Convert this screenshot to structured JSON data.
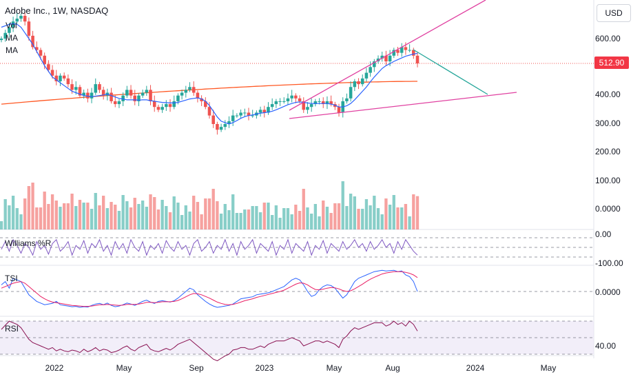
{
  "header": {
    "symbol_title": "Adobe Inc., 1W, NASDAQ",
    "indicators": [
      "Vol",
      "MA",
      "MA"
    ]
  },
  "currency": "USD",
  "last_price_label": "512.90",
  "colors": {
    "up": "#26a69a",
    "down": "#ef5350",
    "ma_fast": "#2962ff",
    "ma_slow": "#ff5722",
    "trend_lines": "#e040a0",
    "projection": "#26a69a",
    "williams": "#7e57c2",
    "tsi": "#2962ff",
    "tsi_signal": "#e91e63",
    "rsi": "#880e4f",
    "rsi_band": "#ede7f6"
  },
  "x_axis": {
    "ticks": [
      "2022",
      "May",
      "Sep",
      "2023",
      "May",
      "Aug",
      "2024",
      "May"
    ]
  },
  "panes": {
    "williams": {
      "label": "Williams %R",
      "ticks": [
        "0.00",
        "-100.00"
      ]
    },
    "tsi": {
      "label": "TSI",
      "ticks": [
        "0.0000"
      ]
    },
    "rsi": {
      "label": "RSI",
      "ticks": [
        "40.00"
      ]
    }
  },
  "chart_data": {
    "type": "candlestick",
    "title": "Adobe Inc., 1W, NASDAQ",
    "y_ticks": [
      "600.00",
      "400.00",
      "300.00",
      "200.00",
      "100.00",
      "0.0000"
    ],
    "ylim": [
      0,
      700
    ],
    "last_price": 512.9,
    "grid": false,
    "close": [
      600,
      620,
      640,
      660,
      670,
      680,
      660,
      610,
      570,
      560,
      540,
      510,
      490,
      470,
      450,
      470,
      460,
      440,
      420,
      430,
      400,
      410,
      390,
      410,
      440,
      420,
      400,
      410,
      380,
      370,
      380,
      400,
      420,
      400,
      380,
      400,
      410,
      420,
      380,
      360,
      350,
      360,
      370,
      360,
      380,
      400,
      410,
      420,
      430,
      410,
      390,
      380,
      360,
      330,
      300,
      280,
      290,
      300,
      310,
      330,
      330,
      340,
      340,
      330,
      330,
      340,
      350,
      340,
      360,
      370,
      380,
      380,
      380,
      390,
      400,
      390,
      380,
      350,
      360,
      370,
      380,
      380,
      370,
      380,
      370,
      360,
      340,
      380,
      390,
      430,
      450,
      440,
      460,
      480,
      500,
      520,
      530,
      540,
      520,
      540,
      560,
      550,
      570,
      560,
      560,
      540,
      512.9
    ],
    "ma_fast": [
      640,
      645,
      650,
      652,
      650,
      640,
      620,
      600,
      580,
      555,
      530,
      505,
      485,
      465,
      455,
      445,
      435,
      425,
      415,
      410,
      405,
      400,
      398,
      396,
      398,
      400,
      402,
      405,
      400,
      395,
      390,
      388,
      385,
      385,
      385,
      384,
      385,
      385,
      382,
      380,
      378,
      376,
      375,
      374,
      374,
      376,
      380,
      384,
      388,
      390,
      392,
      388,
      380,
      365,
      345,
      325,
      310,
      305,
      300,
      305,
      312,
      320,
      326,
      330,
      332,
      335,
      338,
      340,
      342,
      345,
      350,
      356,
      362,
      368,
      372,
      376,
      378,
      376,
      374,
      372,
      372,
      372,
      372,
      372,
      370,
      366,
      360,
      360,
      364,
      372,
      385,
      400,
      415,
      430,
      448,
      465,
      480,
      495,
      505,
      512,
      520,
      526,
      532,
      538,
      542,
      546,
      548
    ],
    "ma_slow_start": 370,
    "ma_slow_end": 450,
    "williams": [
      -60,
      -20,
      -70,
      -10,
      -40,
      -80,
      -30,
      -50,
      -90,
      -20,
      -60,
      -40,
      -85,
      -30,
      -10,
      -70,
      -50,
      -20,
      -90,
      -40,
      -60,
      -15,
      -80,
      -30,
      -50,
      -10,
      -70,
      -40,
      -90,
      -20,
      -60,
      -30,
      -80,
      -10,
      -50,
      -70,
      -20,
      -90,
      -40,
      -60,
      -30,
      -80,
      -15,
      -50,
      -70,
      -20,
      -60,
      -40,
      -90,
      -30,
      -10,
      -70,
      -50,
      -20,
      -80,
      -40,
      -60,
      -10,
      -70,
      -30,
      -90,
      -20,
      -60,
      -40,
      -10,
      -80,
      -30,
      -50,
      -70,
      -20,
      -90,
      -40,
      -60,
      -10,
      -80,
      -30,
      -50,
      -70,
      -20,
      -90,
      -40,
      -60,
      -15,
      -80,
      -30,
      -50,
      -70,
      -20,
      -60,
      -40,
      -10,
      -50,
      -30,
      -70,
      -20,
      -60,
      -40,
      -10,
      -50,
      -30,
      -80,
      -20,
      -60,
      -10,
      -40,
      -70,
      -90
    ],
    "tsi": [
      0.2,
      0.3,
      0.1,
      0.4,
      0.35,
      0.3,
      0.1,
      -0.1,
      -0.2,
      -0.3,
      -0.35,
      -0.4,
      -0.38,
      -0.36,
      -0.3,
      -0.4,
      -0.42,
      -0.44,
      -0.46,
      -0.45,
      -0.48,
      -0.46,
      -0.47,
      -0.42,
      -0.38,
      -0.36,
      -0.4,
      -0.35,
      -0.42,
      -0.46,
      -0.44,
      -0.4,
      -0.35,
      -0.38,
      -0.42,
      -0.36,
      -0.3,
      -0.26,
      -0.32,
      -0.36,
      -0.3,
      -0.28,
      -0.3,
      -0.32,
      -0.28,
      -0.2,
      -0.1,
      0.0,
      0.1,
      0.05,
      -0.1,
      -0.2,
      -0.3,
      -0.38,
      -0.44,
      -0.48,
      -0.46,
      -0.44,
      -0.42,
      -0.38,
      -0.3,
      -0.22,
      -0.2,
      -0.18,
      -0.16,
      -0.1,
      -0.08,
      -0.06,
      -0.04,
      0.0,
      0.05,
      0.1,
      0.15,
      0.25,
      0.35,
      0.4,
      0.35,
      0.2,
      0.0,
      -0.15,
      -0.1,
      0.05,
      0.15,
      0.2,
      0.18,
      0.1,
      -0.05,
      -0.2,
      -0.1,
      0.1,
      0.3,
      0.4,
      0.45,
      0.5,
      0.55,
      0.6,
      0.62,
      0.64,
      0.62,
      0.63,
      0.64,
      0.6,
      0.62,
      0.5,
      0.45,
      0.3,
      0.0
    ],
    "tsi_signal": [
      0.1,
      0.15,
      0.2,
      0.25,
      0.28,
      0.3,
      0.25,
      0.15,
      0.05,
      -0.05,
      -0.15,
      -0.22,
      -0.28,
      -0.32,
      -0.34,
      -0.36,
      -0.38,
      -0.4,
      -0.42,
      -0.43,
      -0.44,
      -0.45,
      -0.45,
      -0.44,
      -0.42,
      -0.4,
      -0.4,
      -0.39,
      -0.4,
      -0.41,
      -0.42,
      -0.41,
      -0.39,
      -0.39,
      -0.39,
      -0.38,
      -0.36,
      -0.33,
      -0.33,
      -0.34,
      -0.33,
      -0.31,
      -0.31,
      -0.31,
      -0.3,
      -0.27,
      -0.22,
      -0.16,
      -0.1,
      -0.06,
      -0.07,
      -0.1,
      -0.15,
      -0.2,
      -0.26,
      -0.32,
      -0.36,
      -0.39,
      -0.4,
      -0.39,
      -0.36,
      -0.32,
      -0.28,
      -0.25,
      -0.22,
      -0.18,
      -0.15,
      -0.12,
      -0.09,
      -0.06,
      -0.03,
      0.0,
      0.04,
      0.1,
      0.16,
      0.22,
      0.26,
      0.25,
      0.2,
      0.12,
      0.06,
      0.05,
      0.07,
      0.1,
      0.12,
      0.11,
      0.08,
      0.03,
      0.0,
      0.02,
      0.08,
      0.15,
      0.22,
      0.3,
      0.37,
      0.43,
      0.48,
      0.53,
      0.56,
      0.58,
      0.6,
      0.6,
      0.6,
      0.58,
      0.55,
      0.5,
      0.42
    ],
    "rsi": [
      60,
      65,
      70,
      68,
      66,
      62,
      55,
      48,
      44,
      42,
      40,
      38,
      36,
      38,
      34,
      36,
      34,
      33,
      35,
      34,
      32,
      36,
      33,
      35,
      38,
      34,
      36,
      35,
      32,
      33,
      35,
      38,
      40,
      36,
      34,
      38,
      40,
      42,
      36,
      34,
      33,
      35,
      37,
      35,
      38,
      42,
      44,
      46,
      48,
      44,
      40,
      36,
      32,
      28,
      24,
      22,
      25,
      28,
      30,
      35,
      36,
      38,
      38,
      36,
      36,
      38,
      40,
      38,
      42,
      44,
      46,
      46,
      46,
      48,
      50,
      48,
      46,
      40,
      42,
      44,
      46,
      46,
      44,
      46,
      44,
      42,
      38,
      48,
      52,
      58,
      62,
      60,
      62,
      64,
      66,
      68,
      68,
      68,
      64,
      66,
      70,
      66,
      68,
      64,
      70,
      66,
      58
    ]
  }
}
